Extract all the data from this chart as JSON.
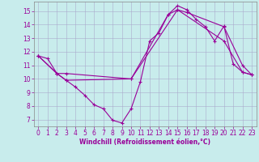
{
  "xlabel": "Windchill (Refroidissement éolien,°C)",
  "background_color": "#c8ecec",
  "line_color": "#990099",
  "grid_color": "#aaaacc",
  "xlim": [
    -0.5,
    23.5
  ],
  "ylim": [
    6.5,
    15.7
  ],
  "yticks": [
    7,
    8,
    9,
    10,
    11,
    12,
    13,
    14,
    15
  ],
  "xticks": [
    0,
    1,
    2,
    3,
    4,
    5,
    6,
    7,
    8,
    9,
    10,
    11,
    12,
    13,
    14,
    15,
    16,
    17,
    18,
    19,
    20,
    21,
    22,
    23
  ],
  "line1_x": [
    0,
    1,
    2,
    3,
    4,
    5,
    6,
    7,
    8,
    9,
    10,
    11,
    12,
    13,
    14,
    15,
    16,
    17,
    18,
    19,
    20,
    21,
    22,
    23
  ],
  "line1_y": [
    11.7,
    11.5,
    10.4,
    9.9,
    9.4,
    8.8,
    8.1,
    7.8,
    6.95,
    6.75,
    7.8,
    9.8,
    12.8,
    13.4,
    14.75,
    15.4,
    15.1,
    14.4,
    13.85,
    12.8,
    13.9,
    11.1,
    10.5,
    10.3
  ],
  "line2_x": [
    0,
    2,
    3,
    10,
    14,
    15,
    16,
    20,
    22,
    23
  ],
  "line2_y": [
    11.7,
    10.4,
    10.4,
    10.0,
    14.75,
    15.1,
    14.9,
    13.85,
    11.0,
    10.3
  ],
  "line3_x": [
    0,
    2,
    3,
    10,
    15,
    20,
    22,
    23
  ],
  "line3_y": [
    11.7,
    10.4,
    9.9,
    10.0,
    15.1,
    12.8,
    10.5,
    10.3
  ],
  "tick_fontsize": 5.5,
  "xlabel_fontsize": 5.5
}
